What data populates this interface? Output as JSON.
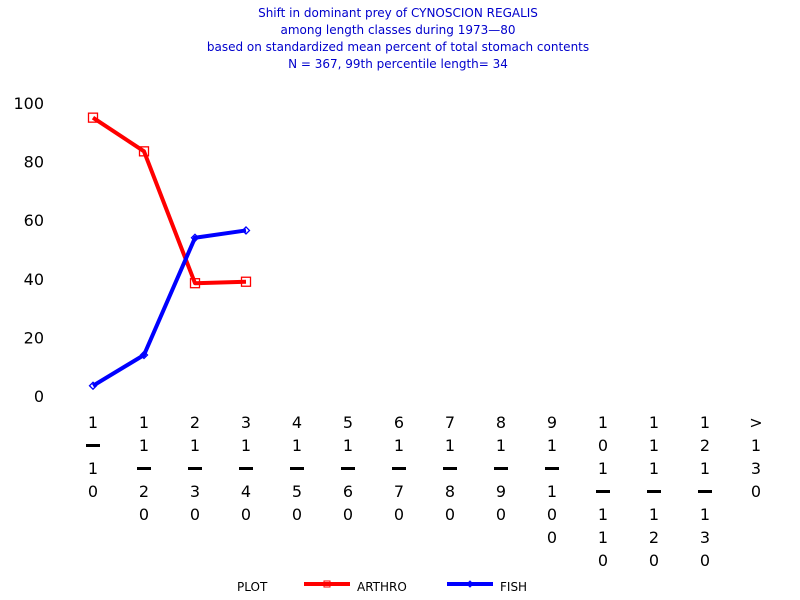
{
  "chart_data": {
    "type": "line",
    "title_lines": [
      "Shift in dominant prey of CYNOSCION REGALIS",
      "among length classes during 1973—80",
      "based on standardized mean percent of  total stomach contents",
      "N =  367, 99th percentile  length= 34"
    ],
    "ylim": [
      0,
      100
    ],
    "yticks": [
      "0",
      "20",
      "40",
      "60",
      "80",
      "100"
    ],
    "categories": [
      "1-10",
      "11-20",
      "21-30",
      "31-40",
      "41-50",
      "51-60",
      "61-70",
      "71-80",
      "81-90",
      "91-100",
      "101-110",
      "111-120",
      "121-130",
      ">130"
    ],
    "series": [
      {
        "name": "ARTHRO",
        "color": "#ff0000",
        "marker": "square",
        "values": [
          95,
          83.5,
          38.5,
          39,
          null,
          null,
          null,
          null,
          null,
          null,
          null,
          null,
          null,
          null
        ]
      },
      {
        "name": "FISH",
        "color": "#0000ff",
        "marker": "diamond",
        "values": [
          3.5,
          14,
          54,
          56.5,
          null,
          null,
          null,
          null,
          null,
          null,
          null,
          null,
          null,
          null
        ]
      }
    ],
    "legend": {
      "title": "PLOT",
      "placement": "bottom"
    },
    "grid": false
  }
}
